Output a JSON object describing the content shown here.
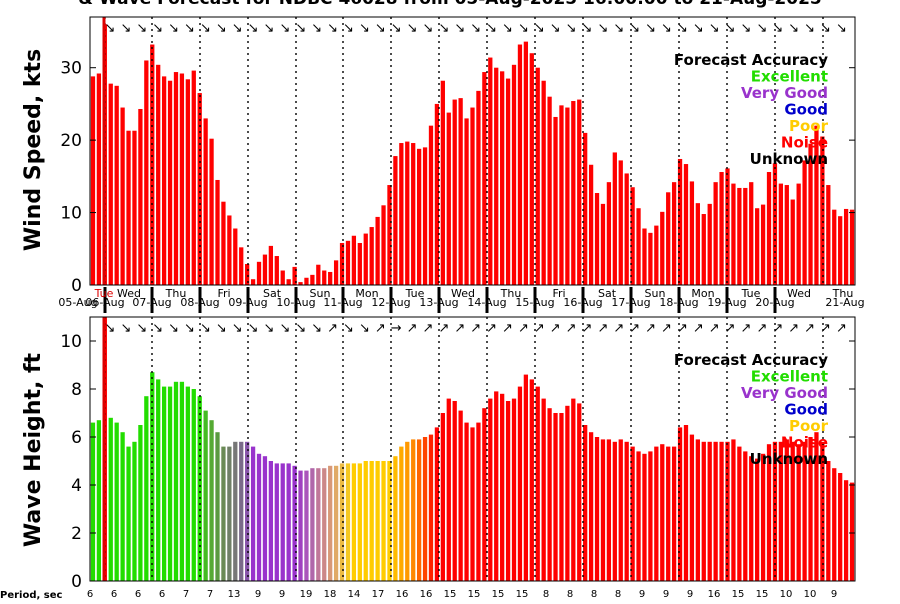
{
  "title": "& Wave Forecast for NDBC 46028 from 05-Aug-2025 16:00:00 to 21-Aug-2025",
  "period_label": "Period, sec",
  "colors": {
    "excellent": "#22dd00",
    "very_good": "#9933cc",
    "good": "#0000cc",
    "poor": "#ffcc00",
    "noise": "#ff0000",
    "unknown": "#000000",
    "now_line": "#dd0000"
  },
  "chart_data": [
    {
      "type": "bar",
      "ylabel": "Wind Speed, kts",
      "ylim": [
        0,
        37
      ],
      "yticks": [
        0,
        10,
        20,
        30
      ],
      "day_top_labels": [
        "Tue",
        "Wed",
        "Thu",
        "Fri",
        "Sat",
        "Sun",
        "Mon",
        "Tue",
        "Wed",
        "Thu",
        "Fri",
        "Sat",
        "Sun",
        "Mon",
        "Tue",
        "Wed",
        "Thu"
      ],
      "day_bottom_labels": [
        "05-Aug",
        "06-Aug",
        "07-Aug",
        "08-Aug",
        "09-Aug",
        "10-Aug",
        "11-Aug",
        "12-Aug",
        "13-Aug",
        "14-Aug",
        "15-Aug",
        "16-Aug",
        "17-Aug",
        "18-Aug",
        "19-Aug",
        "20-Aug",
        "21-Aug"
      ],
      "legend": {
        "title": "Forecast Accuracy",
        "items": [
          "Excellent",
          "Very Good",
          "Good",
          "Poor",
          "Noise",
          "Unknown"
        ]
      },
      "values": [
        28.8,
        29.2,
        36,
        27.8,
        27.5,
        24.5,
        21.3,
        21.3,
        24.3,
        31.0,
        33.2,
        30.4,
        28.8,
        28.2,
        29.4,
        29.2,
        28.4,
        29.6,
        26.5,
        23.0,
        20.2,
        14.5,
        11.5,
        9.6,
        7.8,
        5.2,
        2.9,
        0.8,
        3.2,
        4.2,
        5.4,
        4.0,
        2.0,
        0.8,
        2.5,
        0.4,
        1.0,
        1.4,
        2.8,
        2.0,
        1.8,
        3.4,
        5.8,
        6.1,
        6.8,
        5.8,
        7.1,
        8.0,
        9.4,
        11.0,
        13.8,
        17.8,
        19.6,
        19.8,
        19.6,
        18.8,
        19.0,
        22.0,
        25.0,
        28.2,
        23.8,
        25.6,
        25.8,
        23.0,
        24.5,
        26.8,
        29.4,
        31.4,
        30.0,
        29.5,
        28.5,
        30.4,
        33.2,
        33.6,
        32.0,
        30.0,
        28.2,
        26.0,
        23.2,
        24.8,
        24.5,
        25.4,
        25.6,
        21.0,
        16.6,
        12.7,
        11.2,
        14.2,
        18.3,
        17.2,
        15.4,
        13.5,
        10.6,
        7.8,
        7.2,
        8.2,
        10.1,
        12.8,
        14.2,
        17.4,
        16.7,
        14.3,
        11.3,
        9.8,
        11.2,
        14.2,
        15.6,
        16.1,
        14.0,
        13.4,
        13.4,
        14.2,
        10.6,
        11.1,
        15.6,
        16.8,
        14.0,
        13.8,
        11.8,
        14.0,
        17.2,
        19.5,
        22.0,
        20.5,
        13.8,
        10.4,
        9.5,
        10.5,
        10.4
      ],
      "period_ticks": [],
      "direction_glyphs": [
        "↘",
        "↘",
        "↘",
        "↘",
        "↘",
        "↘",
        "↘",
        "↘",
        "↘",
        "↘",
        "↘",
        "↘",
        "↘",
        "↘",
        "↘",
        "↘",
        "↘",
        "↘",
        "↘",
        "↘",
        "↘",
        "↘",
        "↘",
        "↘",
        "↘",
        "↘",
        "↘",
        "↘",
        "↘",
        "↘",
        "↘",
        "↘",
        "↘",
        "↘",
        "↘",
        "↘",
        "↘",
        "↘",
        "↘",
        "↘",
        "↘",
        "↘",
        "↘",
        "↘",
        "↘",
        "↘",
        "↘"
      ]
    },
    {
      "type": "bar",
      "ylabel": "Wave Height, ft",
      "ylim": [
        0,
        11
      ],
      "yticks": [
        0,
        2,
        4,
        6,
        8,
        10
      ],
      "legend": {
        "title": "Forecast Accuracy",
        "items": [
          "Excellent",
          "Very Good",
          "Good",
          "Poor",
          "Noise",
          "Unknown"
        ]
      },
      "values": [
        6.6,
        6.7,
        11,
        6.8,
        6.6,
        6.2,
        5.6,
        5.8,
        6.5,
        7.7,
        8.7,
        8.4,
        8.1,
        8.1,
        8.3,
        8.3,
        8.1,
        8.0,
        7.7,
        7.1,
        6.7,
        6.2,
        5.6,
        5.6,
        5.8,
        5.8,
        5.8,
        5.6,
        5.3,
        5.2,
        5.0,
        4.9,
        4.9,
        4.9,
        4.8,
        4.6,
        4.6,
        4.7,
        4.7,
        4.7,
        4.8,
        4.8,
        4.9,
        4.9,
        4.9,
        4.9,
        5.0,
        5.0,
        5.0,
        5.0,
        5.0,
        5.2,
        5.6,
        5.8,
        5.9,
        5.9,
        6.0,
        6.1,
        6.4,
        7.0,
        7.6,
        7.5,
        7.1,
        6.6,
        6.4,
        6.6,
        7.2,
        7.6,
        7.9,
        7.8,
        7.5,
        7.6,
        8.1,
        8.6,
        8.4,
        8.1,
        7.6,
        7.2,
        7.0,
        7.0,
        7.3,
        7.6,
        7.4,
        6.5,
        6.2,
        6.0,
        5.9,
        5.9,
        5.8,
        5.9,
        5.8,
        5.6,
        5.4,
        5.3,
        5.4,
        5.6,
        5.7,
        5.6,
        5.6,
        6.4,
        6.5,
        6.1,
        5.9,
        5.8,
        5.8,
        5.8,
        5.8,
        5.8,
        5.9,
        5.6,
        5.4,
        5.2,
        5.1,
        5.3,
        5.7,
        5.8,
        5.8,
        5.9,
        5.8,
        5.7,
        5.8,
        6.0,
        6.2,
        5.8,
        5.0,
        4.7,
        4.5,
        4.2,
        4.1
      ],
      "value_colors": [
        "#22dd00",
        "#22dd00",
        "#ff0000",
        "#22dd00",
        "#22dd00",
        "#22dd00",
        "#22dd00",
        "#22dd00",
        "#22dd00",
        "#22dd00",
        "#22dd00",
        "#22dd00",
        "#22dd00",
        "#22dd00",
        "#22dd00",
        "#22dd00",
        "#22dd00",
        "#22dd00",
        "#22dd00",
        "#44bb22",
        "#55aa33",
        "#5a9a40",
        "#6a8a55",
        "#6f7f66",
        "#777777",
        "#7a6a8a",
        "#8855aa",
        "#9933cc",
        "#9933cc",
        "#9933cc",
        "#9933cc",
        "#9933cc",
        "#9933cc",
        "#9933cc",
        "#9933cc",
        "#a040c0",
        "#aa55bb",
        "#b066aa",
        "#c07799",
        "#cc8888",
        "#d89977",
        "#e0aa66",
        "#ecbb44",
        "#f5c822",
        "#ffcc00",
        "#ffcc00",
        "#ffcc00",
        "#ffcc00",
        "#ffcc00",
        "#ffcc00",
        "#ffcc00",
        "#ffbb00",
        "#ffaa00",
        "#ff9900",
        "#ff8800",
        "#ff6600",
        "#ff4400",
        "#ff2200",
        "#ff0000",
        "#ff0000",
        "#ff0000",
        "#ff0000",
        "#ff0000",
        "#ff0000",
        "#ff0000",
        "#ff0000",
        "#ff0000",
        "#ff0000",
        "#ff0000",
        "#ff0000",
        "#ff0000",
        "#ff0000",
        "#ff0000",
        "#ff0000",
        "#ff0000",
        "#ff0000",
        "#ff0000",
        "#ff0000",
        "#ff0000",
        "#ff0000",
        "#ff0000",
        "#ff0000",
        "#ff0000",
        "#ff0000",
        "#ff0000",
        "#ff0000",
        "#ff0000",
        "#ff0000",
        "#ff0000",
        "#ff0000",
        "#ff0000",
        "#ff0000",
        "#ff0000",
        "#ff0000",
        "#ff0000",
        "#ff0000",
        "#ff0000",
        "#ff0000",
        "#ff0000",
        "#ff0000",
        "#ff0000",
        "#ff0000",
        "#ff0000",
        "#ff0000",
        "#ff0000",
        "#ff0000",
        "#ff0000",
        "#ff0000",
        "#ff0000",
        "#ff0000",
        "#ff0000",
        "#ff0000",
        "#ff0000",
        "#ff0000",
        "#ff0000",
        "#ff0000",
        "#ff0000",
        "#ff0000",
        "#ff0000",
        "#ff0000",
        "#ff0000",
        "#ff0000",
        "#ff0000",
        "#ff0000",
        "#ff0000",
        "#ff0000",
        "#ff0000",
        "#ff0000",
        "#ff0000"
      ],
      "period_ticks": [
        "6",
        "6",
        "6",
        "6",
        "7",
        "7",
        "13",
        "9",
        "9",
        "19",
        "18",
        "14",
        "17",
        "16",
        "16",
        "15",
        "15",
        "15",
        "15",
        "8",
        "8",
        "8",
        "8",
        "9",
        "9",
        "9",
        "16",
        "15",
        "15",
        "10",
        "10",
        "9"
      ],
      "direction_glyphs": [
        "↘",
        "↘",
        "↘",
        "↘",
        "↘",
        "↘",
        "↘",
        "↘",
        "↘",
        "↘",
        "↘",
        "↘",
        "↘",
        "↘",
        "↗",
        "↘",
        "↘",
        "↗",
        "→",
        "↗",
        "↗",
        "↗",
        "↗",
        "↗",
        "↗",
        "↗",
        "↗",
        "↗",
        "↗",
        "↗",
        "↗",
        "↗",
        "↗",
        "↗",
        "↗",
        "↗",
        "↗",
        "↗",
        "↗",
        "↗",
        "↗",
        "↗",
        "↗",
        "↗",
        "↗",
        "↗",
        "↗"
      ]
    }
  ]
}
